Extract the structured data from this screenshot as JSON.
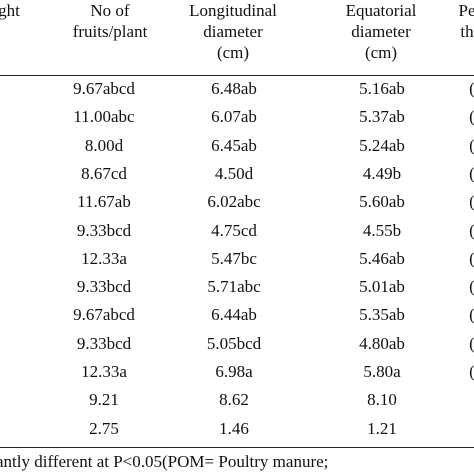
{
  "table": {
    "headers": {
      "c0": [
        "ght"
      ],
      "c1": [
        "No of",
        "fruits/plant"
      ],
      "c2": [
        "Longitudinal",
        "diameter",
        "(cm)"
      ],
      "c3": [
        "Equatorial",
        "diameter",
        "(cm)"
      ],
      "c4": [
        "Pe",
        "th"
      ]
    },
    "rows": [
      [
        "9.67abcd",
        "6.48ab",
        "5.16ab",
        "("
      ],
      [
        "11.00abc",
        "6.07ab",
        "5.37ab",
        "("
      ],
      [
        "8.00d",
        "6.45ab",
        "5.24ab",
        "("
      ],
      [
        "8.67cd",
        "4.50d",
        "4.49b",
        "("
      ],
      [
        "11.67ab",
        "6.02abc",
        "5.60ab",
        "("
      ],
      [
        "9.33bcd",
        "4.75cd",
        "4.55b",
        "("
      ],
      [
        "12.33a",
        "5.47bc",
        "5.46ab",
        "("
      ],
      [
        "9.33bcd",
        "5.71abc",
        "5.01ab",
        "("
      ],
      [
        "9.67abcd",
        "6.44ab",
        "5.35ab",
        "("
      ],
      [
        "9.33bcd",
        "5.05bcd",
        "4.80ab",
        "("
      ],
      [
        "12.33a",
        "6.98a",
        "5.80a",
        "("
      ],
      [
        "9.21",
        "8.62",
        "8.10",
        ""
      ],
      [
        "2.75",
        "1.46",
        "1.21",
        ""
      ]
    ],
    "footnote": "antly different at P<0.05(POM= Poultry manure;"
  }
}
